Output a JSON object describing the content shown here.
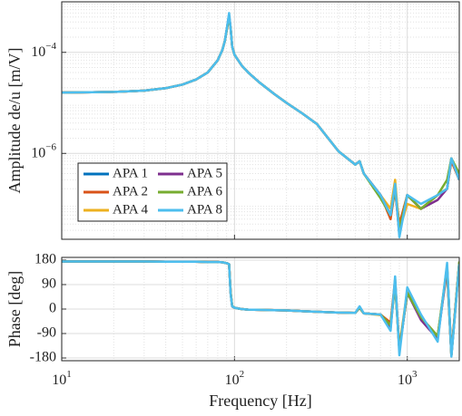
{
  "chart_data": [
    {
      "type": "line",
      "ylabel": "Amplitude de/u [m/V]",
      "xlog": true,
      "ylog": true,
      "grid": true,
      "legend": "lower left",
      "x": [
        10,
        15,
        20,
        30,
        40,
        50,
        60,
        70,
        80,
        85,
        88,
        91,
        93,
        95,
        97,
        100,
        105,
        110,
        120,
        140,
        170,
        200,
        250,
        300,
        400,
        500,
        530,
        560,
        700,
        800,
        850,
        900,
        1000,
        1200,
        1500,
        1700,
        1800,
        2000
      ],
      "xlim": [
        10,
        2000
      ],
      "xticks": [
        10,
        100,
        1000
      ],
      "ylim": [
        2e-08,
        0.001
      ],
      "yticks": [
        {
          "value": 0.0001,
          "label": "10−4"
        },
        {
          "value": 1e-06,
          "label": "10−6"
        }
      ],
      "series": [
        {
          "name": "APA 1",
          "color": "#0072BD",
          "values": [
            1.6e-05,
            1.62e-05,
            1.65e-05,
            1.75e-05,
            1.95e-05,
            2.3e-05,
            2.9e-05,
            4e-05,
            7e-05,
            0.00011,
            0.00017,
            0.00035,
            0.00055,
            0.0003,
            0.00013,
            9e-05,
            7e-05,
            5.5e-05,
            4e-05,
            2.5e-05,
            1.5e-05,
            1e-05,
            6e-06,
            3.8e-06,
            1.1e-06,
            6e-07,
            7e-07,
            4e-07,
            1.5e-07,
            6e-08,
            2e-07,
            3e-08,
            1.5e-07,
            8e-08,
            1.5e-07,
            2e-07,
            8e-07,
            3e-07
          ]
        },
        {
          "name": "APA 2",
          "color": "#D95319",
          "values": [
            1.6e-05,
            1.62e-05,
            1.65e-05,
            1.75e-05,
            1.95e-05,
            2.3e-05,
            2.9e-05,
            4e-05,
            7e-05,
            0.00011,
            0.00017,
            0.00033,
            0.00052,
            0.0003,
            0.00013,
            9e-05,
            7e-05,
            5.5e-05,
            4e-05,
            2.5e-05,
            1.5e-05,
            1e-05,
            6e-06,
            3.8e-06,
            1.1e-06,
            6e-07,
            7e-07,
            4e-07,
            1.5e-07,
            5e-08,
            2e-07,
            4e-08,
            1.5e-07,
            8e-08,
            1.5e-07,
            2e-07,
            7e-07,
            3e-07
          ]
        },
        {
          "name": "APA 4",
          "color": "#EDB120",
          "values": [
            1.6e-05,
            1.62e-05,
            1.65e-05,
            1.75e-05,
            1.95e-05,
            2.3e-05,
            2.9e-05,
            4e-05,
            7e-05,
            0.00011,
            0.00017,
            0.00034,
            0.0005,
            0.0003,
            0.00013,
            9e-05,
            7e-05,
            5.5e-05,
            4e-05,
            2.5e-05,
            1.5e-05,
            1e-05,
            6e-06,
            3.8e-06,
            1.1e-06,
            6e-07,
            7e-07,
            4e-07,
            1.5e-07,
            8e-08,
            3e-07,
            3e-08,
            1e-07,
            8e-08,
            1.5e-07,
            2e-07,
            8e-07,
            3e-07
          ]
        },
        {
          "name": "APA 5",
          "color": "#7E2F8E",
          "values": [
            1.6e-05,
            1.62e-05,
            1.65e-05,
            1.75e-05,
            1.95e-05,
            2.3e-05,
            2.9e-05,
            4e-05,
            7e-05,
            0.00011,
            0.00017,
            0.00035,
            0.00053,
            0.0003,
            0.00013,
            9e-05,
            7e-05,
            5.5e-05,
            4e-05,
            2.5e-05,
            1.5e-05,
            1e-05,
            6e-06,
            3.8e-06,
            1.1e-06,
            6e-07,
            7e-07,
            4e-07,
            1.5e-07,
            6e-08,
            2e-07,
            2.5e-08,
            1.5e-07,
            8e-08,
            1.2e-07,
            2e-07,
            8e-07,
            3e-07
          ]
        },
        {
          "name": "APA 6",
          "color": "#77AC30",
          "values": [
            1.6e-05,
            1.62e-05,
            1.65e-05,
            1.75e-05,
            1.95e-05,
            2.3e-05,
            2.9e-05,
            4e-05,
            7e-05,
            0.00011,
            0.00017,
            0.00034,
            0.00048,
            0.0003,
            0.00013,
            9e-05,
            7e-05,
            5.5e-05,
            4e-05,
            2.5e-05,
            1.5e-05,
            1e-05,
            6e-06,
            3.8e-06,
            1.1e-06,
            6e-07,
            7e-07,
            4e-07,
            1.3e-07,
            6e-08,
            2e-07,
            3e-08,
            1.5e-07,
            8e-08,
            1.5e-07,
            3e-07,
            8e-07,
            4e-07
          ]
        },
        {
          "name": "APA 8",
          "color": "#4DBEEE",
          "values": [
            1.6e-05,
            1.62e-05,
            1.65e-05,
            1.75e-05,
            1.95e-05,
            2.3e-05,
            2.9e-05,
            4e-05,
            7e-05,
            0.00011,
            0.00017,
            0.00036,
            0.0006,
            0.0003,
            0.00013,
            9e-05,
            7e-05,
            5.5e-05,
            4e-05,
            2.5e-05,
            1.5e-05,
            1e-05,
            6e-06,
            3.8e-06,
            1.1e-06,
            6e-07,
            7e-07,
            4e-07,
            1.5e-07,
            6e-08,
            2.5e-07,
            2.2e-08,
            1.5e-07,
            1e-07,
            1.5e-07,
            2e-07,
            8e-07,
            3e-07
          ]
        }
      ]
    },
    {
      "type": "line",
      "ylabel": "Phase [deg]",
      "xlabel": "Frequency [Hz]",
      "xlog": true,
      "grid": true,
      "x": [
        10,
        15,
        20,
        30,
        40,
        50,
        60,
        70,
        80,
        85,
        88,
        91,
        93,
        95,
        97,
        100,
        105,
        110,
        120,
        140,
        170,
        200,
        250,
        300,
        400,
        500,
        530,
        560,
        700,
        800,
        850,
        900,
        1000,
        1200,
        1500,
        1700,
        1800,
        2000
      ],
      "xlim": [
        10,
        2000
      ],
      "xticks": [
        {
          "value": 10,
          "label": "101"
        },
        {
          "value": 100,
          "label": "102"
        },
        {
          "value": 1000,
          "label": "103"
        }
      ],
      "ylim": [
        -190,
        190
      ],
      "yticks": [
        180,
        90,
        0,
        -90,
        -180
      ],
      "series": [
        {
          "color": "#0072BD",
          "values": [
            175,
            175,
            175,
            175,
            174,
            174,
            174,
            173,
            173,
            172,
            170,
            168,
            165,
            60,
            10,
            5,
            2,
            0,
            -2,
            -3,
            -4,
            -5,
            -8,
            -10,
            -13,
            -14,
            5,
            -16,
            -20,
            -60,
            100,
            -150,
            60,
            -30,
            -100,
            150,
            -170,
            170
          ]
        },
        {
          "color": "#D95319",
          "values": [
            175,
            175,
            175,
            175,
            174,
            174,
            174,
            173,
            173,
            172,
            170,
            168,
            165,
            58,
            10,
            5,
            2,
            0,
            -2,
            -3,
            -4,
            -5,
            -8,
            -10,
            -13,
            -14,
            8,
            -16,
            -20,
            -50,
            110,
            -150,
            60,
            -30,
            -100,
            150,
            -160,
            170
          ]
        },
        {
          "color": "#EDB120",
          "values": [
            175,
            175,
            175,
            175,
            174,
            174,
            174,
            173,
            173,
            172,
            170,
            168,
            164,
            62,
            10,
            5,
            2,
            0,
            -2,
            -3,
            -4,
            -5,
            -8,
            -10,
            -13,
            -14,
            5,
            -16,
            -22,
            -60,
            100,
            -140,
            70,
            -30,
            -100,
            140,
            -170,
            160
          ]
        },
        {
          "color": "#7E2F8E",
          "values": [
            175,
            175,
            175,
            175,
            174,
            174,
            174,
            173,
            173,
            172,
            170,
            168,
            165,
            60,
            10,
            5,
            2,
            0,
            -2,
            -3,
            -4,
            -5,
            -8,
            -10,
            -13,
            -14,
            5,
            -16,
            -20,
            -70,
            100,
            -150,
            60,
            -40,
            -110,
            150,
            -170,
            170
          ]
        },
        {
          "color": "#77AC30",
          "values": [
            175,
            175,
            175,
            175,
            174,
            174,
            174,
            173,
            173,
            172,
            170,
            168,
            165,
            60,
            12,
            5,
            2,
            0,
            -2,
            -3,
            -4,
            -5,
            -8,
            -10,
            -13,
            -14,
            5,
            -16,
            -20,
            -60,
            90,
            -150,
            60,
            -30,
            -100,
            160,
            -170,
            175
          ]
        },
        {
          "color": "#4DBEEE",
          "values": [
            175,
            175,
            175,
            175,
            174,
            174,
            174,
            173,
            173,
            172,
            170,
            168,
            165,
            55,
            10,
            5,
            2,
            0,
            -2,
            -3,
            -4,
            -5,
            -8,
            -10,
            -13,
            -14,
            10,
            -16,
            -20,
            -80,
            120,
            -170,
            80,
            -20,
            -120,
            170,
            -175,
            165
          ]
        }
      ]
    }
  ]
}
